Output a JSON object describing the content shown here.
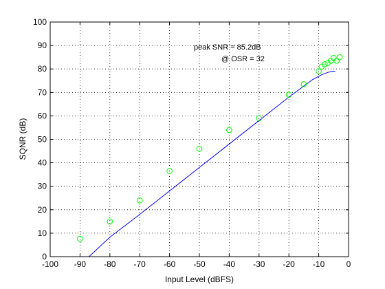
{
  "chart_data": {
    "type": "scatter",
    "xlabel": "Input Level (dBFS)",
    "ylabel": "SQNR (dB)",
    "xlim": [
      -100,
      0
    ],
    "ylim": [
      0,
      100
    ],
    "xticks": [
      -100,
      -90,
      -80,
      -70,
      -60,
      -50,
      -40,
      -30,
      -20,
      -10,
      0
    ],
    "yticks": [
      0,
      10,
      20,
      30,
      40,
      50,
      60,
      70,
      80,
      90,
      100
    ],
    "grid": true,
    "annotations": [
      "peak SNR = 85.2dB",
      "@ OSR = 32"
    ],
    "colors": {
      "line": "#0000ff",
      "markers": "#00ff00",
      "axes": "#000000"
    },
    "series": [
      {
        "type": "line",
        "x": [
          -87,
          -80,
          -70,
          -60,
          -50,
          -40,
          -30,
          -20,
          -12,
          -9,
          -7,
          -5.5,
          -4.5
        ],
        "y": [
          0,
          8.3,
          18,
          28,
          38,
          48,
          58,
          68,
          75.5,
          77.5,
          78.5,
          79,
          79
        ]
      },
      {
        "type": "scatter",
        "marker": "circle",
        "x": [
          -90,
          -80,
          -70,
          -60,
          -50,
          -40,
          -30,
          -20,
          -15,
          -10,
          -9,
          -8,
          -7,
          -6,
          -5,
          -4,
          -3
        ],
        "y": [
          7.6,
          15,
          24,
          36.5,
          46,
          54,
          59,
          69,
          73.5,
          79,
          81,
          82,
          82.5,
          83.5,
          84.7,
          83.5,
          85
        ]
      }
    ]
  }
}
